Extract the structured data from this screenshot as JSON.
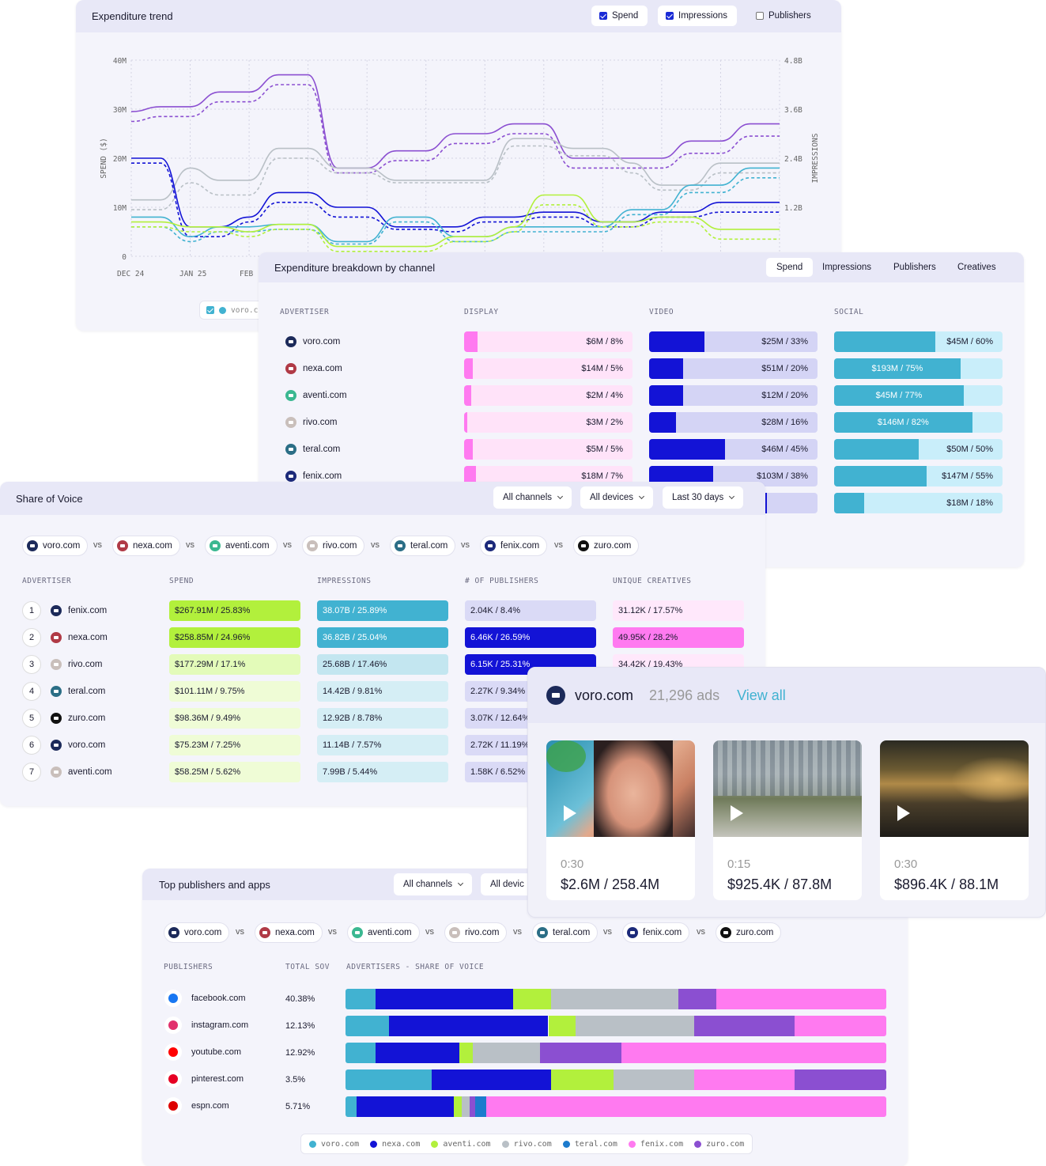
{
  "colors": {
    "voro": "#41b2d1",
    "nexa": "#1313d6",
    "aventi": "#b2f03c",
    "rivo": "#b9c0c6",
    "teral": "#1c7bcd",
    "fenix": "#ff7af0",
    "zuro": "#8b4fd1",
    "avatar": "#1c2a5a"
  },
  "trend": {
    "title": "Expenditure trend",
    "toggles": [
      {
        "label": "Spend",
        "checked": true
      },
      {
        "label": "Impressions",
        "checked": true
      },
      {
        "label": "Publishers",
        "checked": false
      }
    ],
    "ylabel_left": "SPEND ($)",
    "ylabel_right": "IMPRESSIONS",
    "yticks_left": [
      "40M",
      "30M",
      "20M",
      "10M",
      "0"
    ],
    "yticks_right": [
      "4.8B",
      "3.6B",
      "2.4B",
      "1.2B"
    ],
    "xticks": [
      "DEC 24",
      "JAN 25",
      "FEB"
    ],
    "legend_item": "voro.c"
  },
  "chart_data": {
    "type": "line",
    "xlabel": "",
    "ylabel": "SPEND ($)",
    "ylabel_right": "IMPRESSIONS",
    "ylim": [
      0,
      40000000
    ],
    "ylim_right": [
      0,
      4800000000
    ],
    "x_ticks": [
      "DEC 24",
      "JAN 25",
      "FEB"
    ],
    "series": [
      {
        "color": "#8b4fd1",
        "values": [
          29.5,
          30.5,
          30.5,
          33.5,
          33.5,
          37,
          37,
          18,
          18,
          21.5,
          21.5,
          25,
          25,
          27,
          27,
          20,
          20,
          20,
          20,
          23.5,
          23.5,
          27,
          27
        ]
      },
      {
        "color": "#8b4fd1",
        "dashed": true,
        "values": [
          27.5,
          28.5,
          28.5,
          31.5,
          31.5,
          35,
          35,
          17,
          17,
          19.5,
          19.5,
          23,
          23,
          25,
          25,
          18,
          18,
          18,
          18,
          21,
          21,
          24.5,
          24.5
        ]
      },
      {
        "color": "#b9c0c6",
        "values": [
          11.5,
          11.5,
          18,
          15.5,
          15.5,
          22,
          22,
          18,
          18,
          15.5,
          15.5,
          15.5,
          15.5,
          24,
          24,
          22,
          22,
          19,
          14.5,
          14.5,
          19,
          19,
          19
        ]
      },
      {
        "color": "#b9c0c6",
        "dashed": true,
        "values": [
          9.5,
          9.5,
          15,
          12.5,
          12.5,
          20,
          20,
          17,
          17,
          15,
          15,
          15,
          15,
          22.5,
          22.5,
          20.5,
          20.5,
          17,
          13.5,
          13.5,
          17,
          17,
          17
        ]
      },
      {
        "color": "#1313d6",
        "values": [
          20,
          20,
          6,
          6,
          8,
          13,
          13,
          10,
          10,
          6,
          6,
          6,
          8,
          8,
          9,
          9,
          7,
          7,
          9,
          9,
          11,
          11,
          11
        ]
      },
      {
        "color": "#1313d6",
        "dashed": true,
        "values": [
          19,
          19,
          4,
          4,
          7,
          11,
          11,
          8,
          8,
          5.5,
          5.5,
          5,
          7,
          7,
          8,
          8,
          6,
          6,
          8,
          8,
          9,
          9,
          9
        ]
      },
      {
        "color": "#41b2d1",
        "values": [
          8,
          8,
          4,
          6,
          6,
          6.5,
          6.5,
          3,
          3,
          8,
          8,
          4,
          4,
          6,
          6,
          6,
          6,
          9.5,
          9.5,
          14.5,
          14.5,
          18,
          18
        ]
      },
      {
        "color": "#41b2d1",
        "dashed": true,
        "values": [
          6,
          6,
          3,
          5,
          5,
          5.5,
          5.5,
          2.5,
          2.5,
          7,
          7,
          3,
          3,
          5,
          5,
          5,
          5,
          8.5,
          8.5,
          13,
          13,
          16,
          16
        ]
      },
      {
        "color": "#b2f03c",
        "values": [
          7,
          7,
          6,
          6,
          5,
          6.5,
          6.5,
          2,
          2,
          2,
          2,
          4,
          4,
          6,
          12.5,
          12.5,
          7,
          7,
          8,
          8,
          5.5,
          5.5,
          5.5
        ]
      },
      {
        "color": "#b2f03c",
        "dashed": true,
        "values": [
          6,
          6,
          5,
          5,
          4,
          5.5,
          5.5,
          1,
          1,
          1,
          1,
          3,
          3,
          5,
          10.5,
          10.5,
          6,
          6,
          7,
          7,
          3.5,
          3.5,
          3.5
        ]
      }
    ]
  },
  "breakdown": {
    "title": "Expenditure breakdown by channel",
    "tabs": [
      {
        "label": "Spend",
        "active": true
      },
      {
        "label": "Impressions"
      },
      {
        "label": "Publishers"
      },
      {
        "label": "Creatives"
      }
    ],
    "headers": [
      "ADVERTISER",
      "DISPLAY",
      "VIDEO",
      "SOCIAL"
    ],
    "rows": [
      {
        "name": "voro.com",
        "color": "#1c2a5a",
        "display": "$6M / 8%",
        "dfill": 8,
        "video": "$25M / 33%",
        "vfill": 33,
        "social": "$45M / 60%",
        "sfill": 60
      },
      {
        "name": "nexa.com",
        "color": "#b03a46",
        "display": "$14M / 5%",
        "dfill": 5,
        "video": "$51M / 20%",
        "vfill": 20,
        "social": "$193M / 75%",
        "sfill": 75
      },
      {
        "name": "aventi.com",
        "color": "#3bb891",
        "display": "$2M / 4%",
        "dfill": 4,
        "video": "$12M / 20%",
        "vfill": 20,
        "social": "$45M / 77%",
        "sfill": 77
      },
      {
        "name": "rivo.com",
        "color": "#c9bfbb",
        "display": "$3M / 2%",
        "dfill": 2,
        "video": "$28M / 16%",
        "vfill": 16,
        "social": "$146M / 82%",
        "sfill": 82
      },
      {
        "name": "teral.com",
        "color": "#2b6e86",
        "display": "$5M / 5%",
        "dfill": 5,
        "video": "$46M / 45%",
        "vfill": 45,
        "social": "$50M / 50%",
        "sfill": 50
      },
      {
        "name": "fenix.com",
        "color": "#1c2a7a",
        "display": "$18M / 7%",
        "dfill": 7,
        "video": "$103M / 38%",
        "vfill": 38,
        "social": "$147M / 55%",
        "sfill": 55
      },
      {
        "name": "",
        "color": "",
        "display": "",
        "dfill": 0,
        "video": "",
        "vfill": 70,
        "social": "$18M / 18%",
        "sfill": 18
      }
    ]
  },
  "sov": {
    "title": "Share of Voice",
    "filters": [
      "All channels",
      "All devices",
      "Last 30 days"
    ],
    "compare": [
      {
        "name": "voro.com",
        "color": "#1c2a5a"
      },
      {
        "name": "nexa.com",
        "color": "#b03a46"
      },
      {
        "name": "aventi.com",
        "color": "#3bb891"
      },
      {
        "name": "rivo.com",
        "color": "#c9bfbb"
      },
      {
        "name": "teral.com",
        "color": "#2b6e86"
      },
      {
        "name": "fenix.com",
        "color": "#1c2a7a"
      },
      {
        "name": "zuro.com",
        "color": "#111111"
      }
    ],
    "vs": "vs",
    "headers": [
      "ADVERTISER",
      "SPEND",
      "IMPRESSIONS",
      "# OF PUBLISHERS",
      "UNIQUE CREATIVES"
    ],
    "rows": [
      {
        "rank": "1",
        "name": "fenix.com",
        "color": "#1c2a5a",
        "spend": "$267.91M / 25.83%",
        "impr": "38.07B / 25.89%",
        "pubs": "2.04K / 8.4%",
        "crea": "31.12K / 17.57%",
        "lvl": [
          3,
          3,
          1,
          1
        ]
      },
      {
        "rank": "2",
        "name": "nexa.com",
        "color": "#b03a46",
        "spend": "$258.85M / 24.96%",
        "impr": "36.82B / 25.04%",
        "pubs": "6.46K / 26.59%",
        "crea": "49.95K / 28.2%",
        "lvl": [
          3,
          3,
          3,
          3
        ]
      },
      {
        "rank": "3",
        "name": "rivo.com",
        "color": "#c9bfbb",
        "spend": "$177.29M / 17.1%",
        "impr": "25.68B / 17.46%",
        "pubs": "6.15K / 25.31%",
        "crea": "34.42K / 19.43%",
        "lvl": [
          2,
          2,
          3,
          1
        ]
      },
      {
        "rank": "4",
        "name": "teral.com",
        "color": "#2b6e86",
        "spend": "$101.11M / 9.75%",
        "impr": "14.42B / 9.81%",
        "pubs": "2.27K / 9.34%",
        "crea": "",
        "lvl": [
          1,
          1,
          1,
          1
        ]
      },
      {
        "rank": "5",
        "name": "zuro.com",
        "color": "#111111",
        "spend": "$98.36M / 9.49%",
        "impr": "12.92B / 8.78%",
        "pubs": "3.07K / 12.64%",
        "crea": "",
        "lvl": [
          1,
          1,
          1,
          1
        ]
      },
      {
        "rank": "6",
        "name": "voro.com",
        "color": "#1c2a5a",
        "spend": "$75.23M / 7.25%",
        "impr": "11.14B / 7.57%",
        "pubs": "2.72K / 11.19%",
        "crea": "",
        "lvl": [
          1,
          1,
          1,
          1
        ]
      },
      {
        "rank": "7",
        "name": "aventi.com",
        "color": "#c9bfbb",
        "spend": "$58.25M / 5.62%",
        "impr": "7.99B / 5.44%",
        "pubs": "1.58K / 6.52%",
        "crea": "",
        "lvl": [
          1,
          1,
          1,
          1
        ]
      }
    ]
  },
  "ads": {
    "advertiser": "voro.com",
    "count": "21,296 ads",
    "view_all": "View all",
    "cards": [
      {
        "duration": "0:30",
        "metric": "$2.6M / 258.4M"
      },
      {
        "duration": "0:15",
        "metric": "$925.4K / 87.8M"
      },
      {
        "duration": "0:30",
        "metric": "$896.4K / 88.1M"
      }
    ]
  },
  "publishers": {
    "title": "Top publishers and apps",
    "filters": [
      "All channels",
      "All devic"
    ],
    "compare": [
      {
        "name": "voro.com",
        "color": "#1c2a5a"
      },
      {
        "name": "nexa.com",
        "color": "#b03a46"
      },
      {
        "name": "aventi.com",
        "color": "#3bb891"
      },
      {
        "name": "rivo.com",
        "color": "#c9bfbb"
      },
      {
        "name": "teral.com",
        "color": "#2b6e86"
      },
      {
        "name": "fenix.com",
        "color": "#1c2a7a"
      },
      {
        "name": "zuro.com",
        "color": "#111111"
      }
    ],
    "headers": [
      "PUBLISHERS",
      "TOTAL SOV",
      "ADVERTISERS - SHARE OF VOICE"
    ],
    "rows": [
      {
        "name": "facebook.com",
        "icon": "facebook-icon",
        "sov": "40.38%",
        "shares": [
          5.5,
          25.5,
          7,
          23.5,
          7,
          31.5
        ]
      },
      {
        "name": "instagram.com",
        "icon": "instagram-icon",
        "sov": "12.13%",
        "shares": [
          8,
          29.5,
          5,
          22,
          18.5,
          17
        ]
      },
      {
        "name": "youtube.com",
        "icon": "youtube-icon",
        "sov": "12.92%",
        "shares": [
          5.5,
          15.5,
          2.5,
          12.5,
          15,
          49
        ]
      },
      {
        "name": "pinterest.com",
        "icon": "pinterest-icon",
        "sov": "3.5%",
        "shares": [
          16,
          22,
          11.5,
          15,
          18.5,
          17
        ]
      },
      {
        "name": "espn.com",
        "icon": "espn-icon",
        "sov": "5.71%",
        "shares": [
          2,
          18,
          1.5,
          1.5,
          1,
          2,
          74
        ]
      }
    ],
    "legend": [
      {
        "name": "voro.com",
        "color": "#41b2d1"
      },
      {
        "name": "nexa.com",
        "color": "#1313d6"
      },
      {
        "name": "aventi.com",
        "color": "#b2f03c"
      },
      {
        "name": "rivo.com",
        "color": "#b9c0c6"
      },
      {
        "name": "teral.com",
        "color": "#1c7bcd"
      },
      {
        "name": "fenix.com",
        "color": "#ff7af0"
      },
      {
        "name": "zuro.com",
        "color": "#8b4fd1"
      }
    ]
  }
}
